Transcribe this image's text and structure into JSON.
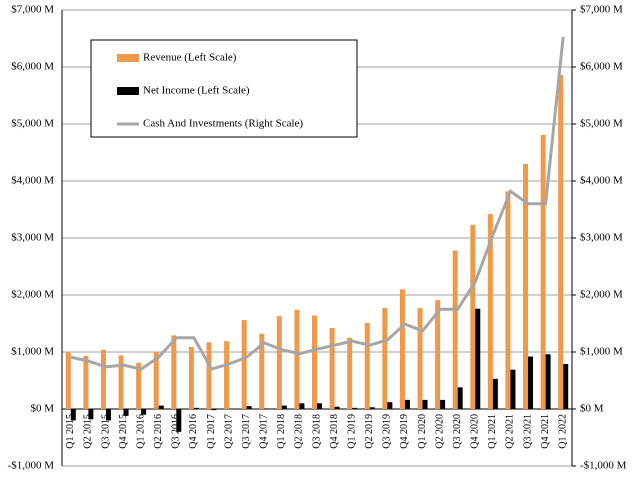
{
  "chart_data": {
    "type": "bar-line",
    "categories": [
      "Q1 2015",
      "Q2 2015",
      "Q3 2015",
      "Q4 2015",
      "Q1 2016",
      "Q2 2016",
      "Q3 2016",
      "Q4 2016",
      "Q1 2017",
      "Q2 2017",
      "Q3 2017",
      "Q4 2017",
      "Q1 2018",
      "Q2 2018",
      "Q3 2018",
      "Q4 2018",
      "Q1 2019",
      "Q2 2019",
      "Q3 2019",
      "Q4 2019",
      "Q1 2020",
      "Q2 2020",
      "Q3 2020",
      "Q4 2020",
      "Q1 2021",
      "Q2 2021",
      "Q3 2021",
      "Q4 2021",
      "Q1 2022"
    ],
    "series": [
      {
        "name": "Revenue (Left Scale)",
        "type": "bar",
        "color": "#f0994a",
        "values": [
          1000,
          930,
          1040,
          940,
          810,
          1000,
          1290,
          1090,
          1170,
          1190,
          1560,
          1320,
          1630,
          1740,
          1640,
          1420,
          1250,
          1510,
          1770,
          2100,
          1770,
          1910,
          2780,
          3230,
          3420,
          3820,
          4300,
          4810,
          5860
        ]
      },
      {
        "name": "Net Income (Left Scale)",
        "type": "bar",
        "color": "#000000",
        "values": [
          -200,
          -180,
          -200,
          -120,
          -100,
          60,
          -400,
          20,
          -20,
          5,
          50,
          10,
          60,
          100,
          100,
          40,
          20,
          30,
          120,
          160,
          160,
          160,
          380,
          1760,
          530,
          690,
          920,
          960,
          790
        ]
      },
      {
        "name": "Cash And Investments (Right Scale)",
        "type": "line",
        "axis": "y2",
        "color": "#a6a6a6",
        "values": [
          910,
          840,
          740,
          770,
          700,
          910,
          1250,
          1250,
          700,
          790,
          910,
          1160,
          1040,
          970,
          1050,
          1120,
          1190,
          1120,
          1210,
          1490,
          1370,
          1750,
          1750,
          2230,
          3050,
          3820,
          3600,
          3600,
          6530
        ]
      }
    ],
    "ylim": [
      -1000,
      7000
    ],
    "yticks": [
      {
        "value": -1000,
        "label": "-$1,000 M"
      },
      {
        "value": 0,
        "label": "$0 M"
      },
      {
        "value": 1000,
        "label": "$1,000 M"
      },
      {
        "value": 2000,
        "label": "$2,000 M"
      },
      {
        "value": 3000,
        "label": "$3,000 M"
      },
      {
        "value": 4000,
        "label": "$4,000 M"
      },
      {
        "value": 5000,
        "label": "$5,000 M"
      },
      {
        "value": 6000,
        "label": "$6,000 M"
      },
      {
        "value": 7000,
        "label": "$7,000 M"
      }
    ],
    "y2lim": [
      -1000,
      7000
    ],
    "y2ticks": [
      {
        "value": -1000,
        "label": "-$1,000 M"
      },
      {
        "value": 0,
        "label": "$0 M"
      },
      {
        "value": 1000,
        "label": "$1,000 M"
      },
      {
        "value": 2000,
        "label": "$2,000 M"
      },
      {
        "value": 3000,
        "label": "$3,000 M"
      },
      {
        "value": 4000,
        "label": "$4,000 M"
      },
      {
        "value": 5000,
        "label": "$5,000 M"
      },
      {
        "value": 6000,
        "label": "$6,000 M"
      },
      {
        "value": 7000,
        "label": "$7,000 M"
      }
    ],
    "grid": true,
    "legend": "upper left"
  }
}
